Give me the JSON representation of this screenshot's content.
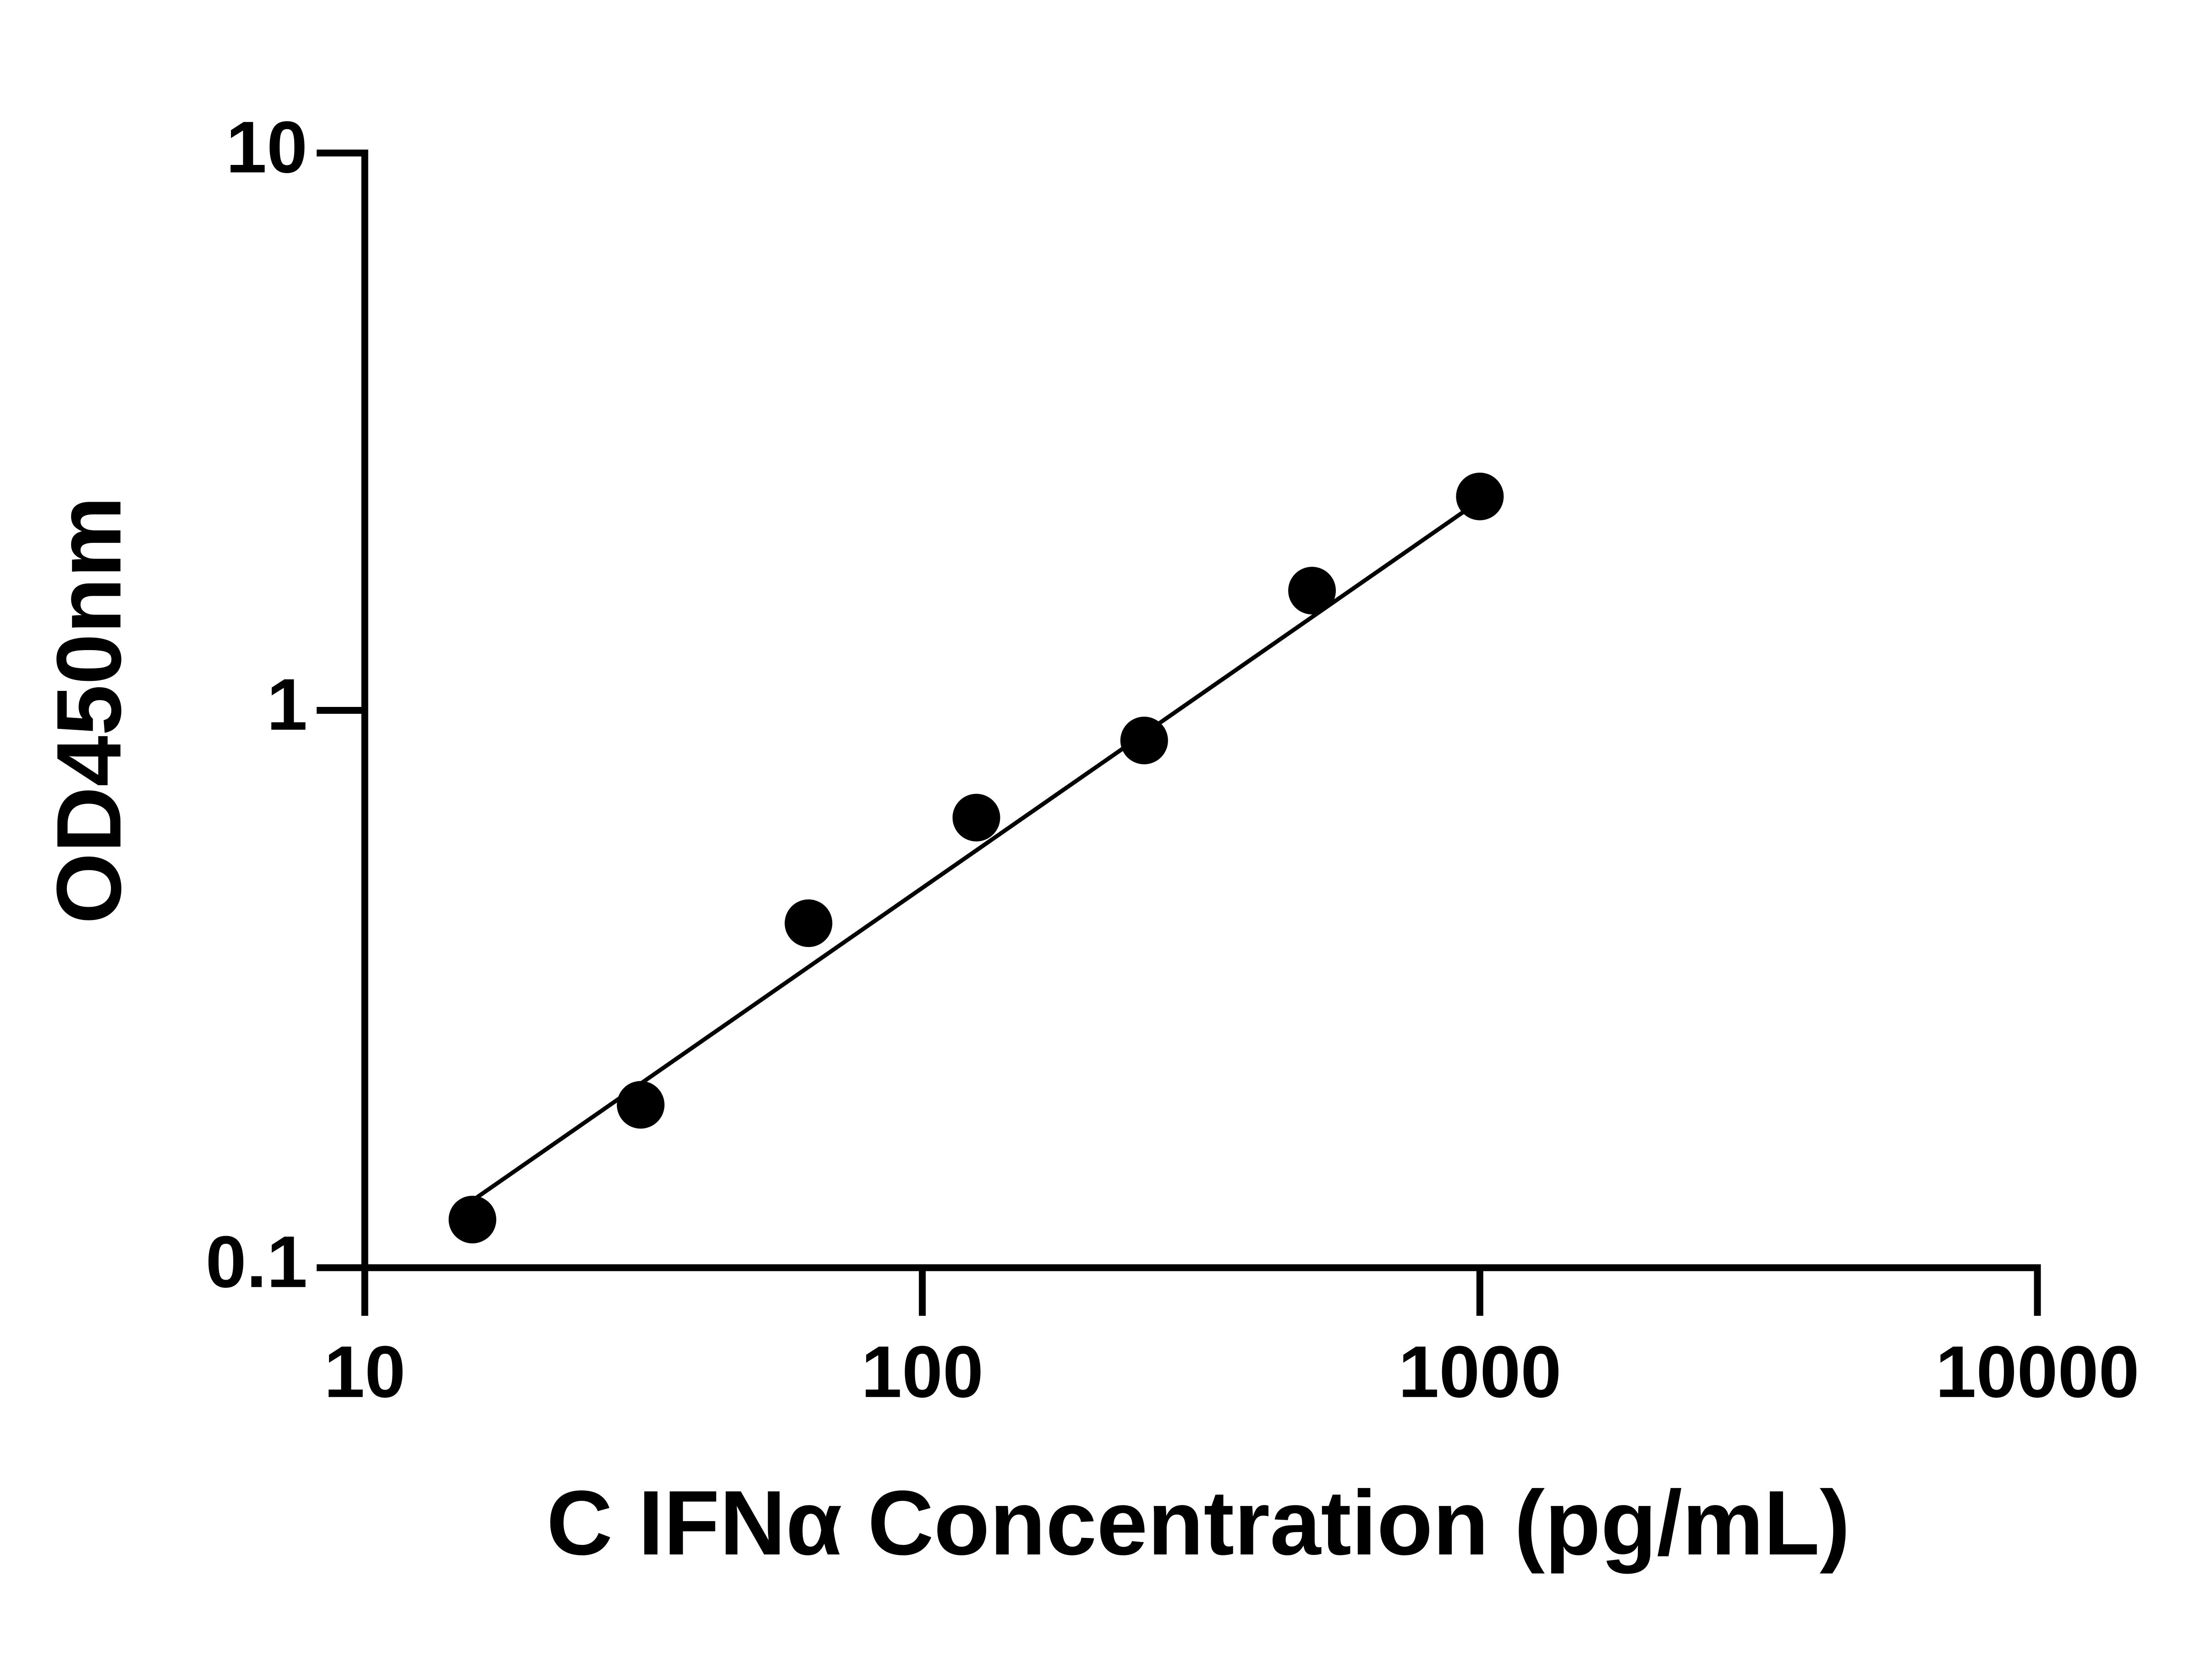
{
  "chart_data": {
    "type": "scatter",
    "x_label": "C IFNα Concentration (pg/mL)",
    "y_label": "OD450nm",
    "x_scale": "log",
    "y_scale": "log",
    "xlim": [
      10,
      10000
    ],
    "xticks": [
      10,
      100,
      1000,
      10000
    ],
    "ylim": [
      0.1,
      10
    ],
    "yticks": [
      0.1,
      1,
      10
    ],
    "series": [
      {
        "color": "#000000",
        "x": [
          15.6,
          31.25,
          62.5,
          125,
          250,
          500,
          1000
        ],
        "values": [
          0.122,
          0.196,
          0.415,
          0.642,
          0.883,
          1.64,
          2.42
        ]
      },
      {
        "type": "line",
        "color": "#000000",
        "x": [
          15.6,
          1000
        ],
        "values": [
          0.132,
          2.38
        ]
      }
    ]
  }
}
